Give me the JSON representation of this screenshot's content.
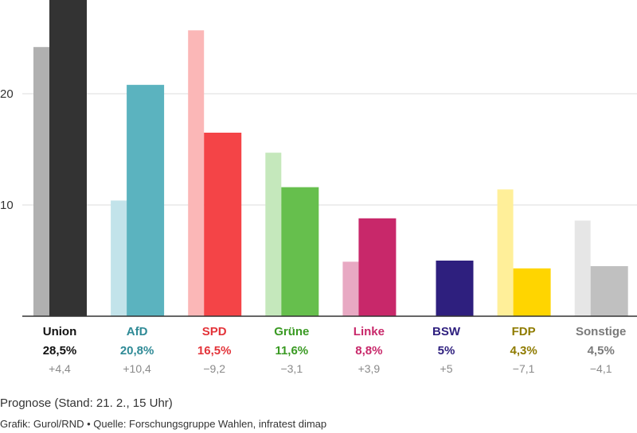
{
  "chart_data": {
    "type": "bar",
    "categories": [
      "Union",
      "AfD",
      "SPD",
      "Grüne",
      "Linke",
      "BSW",
      "FDP",
      "Sonstige"
    ],
    "series": [
      {
        "values": [
          24.2,
          10.4,
          25.7,
          14.7,
          4.9,
          null,
          11.4,
          8.6
        ]
      },
      {
        "values": [
          28.5,
          20.8,
          16.5,
          11.6,
          8.8,
          5,
          4.3,
          4.5
        ]
      }
    ],
    "value_labels": [
      "28,5%",
      "20,8%",
      "16,5%",
      "11,6%",
      "8,8%",
      "5%",
      "4,3%",
      "4,5%"
    ],
    "change_labels": [
      "+4,4",
      "+10,4",
      "−9,2",
      "−3,1",
      "+3,9",
      "+5",
      "−7,1",
      "−4,1"
    ],
    "colors_current": [
      "#333333",
      "#5bb3bf",
      "#f44447",
      "#66bf4d",
      "#c8286a",
      "#2e1f7e",
      "#ffd500",
      "#c0c0c0"
    ],
    "colors_previous": [
      "#b0b0b0",
      "#c2e3ea",
      "#fbb7b7",
      "#c5e8bc",
      "#e8a9c3",
      "#c9c4df",
      "#ffef99",
      "#e6e6e6"
    ],
    "label_colors": [
      "#111111",
      "#2f8a96",
      "#e3343a",
      "#3a9a23",
      "#c8286a",
      "#2e1f7e",
      "#8f7b00",
      "#7a7a7a"
    ],
    "yticks": [
      10,
      20
    ],
    "ylim": [
      0,
      28.5
    ],
    "grid": true,
    "subtitle": "Prognose (Stand: 21. 2., 15 Uhr)",
    "credit": "Grafik: Gurol/RND • Quelle: Forschungsgruppe Wahlen, infratest dimap"
  }
}
